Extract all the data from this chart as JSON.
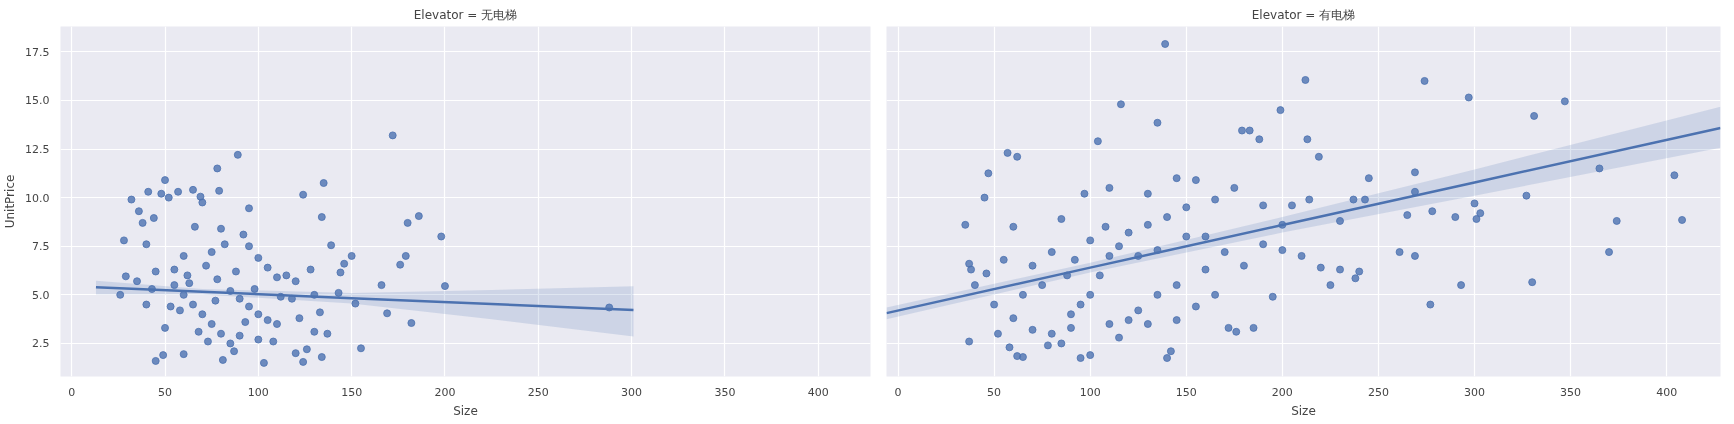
{
  "chart_data": [
    {
      "type": "scatter",
      "title": "Elevator = 无电梯",
      "xlabel": "Size",
      "ylabel": "UnitPrice",
      "xlim": [
        -6,
        428
      ],
      "ylim": [
        0.8,
        18.8
      ],
      "xticks": [
        0,
        50,
        100,
        150,
        200,
        250,
        300,
        350,
        400
      ],
      "yticks": [
        {
          "value": 2.5,
          "label": "2.5"
        },
        {
          "value": 5,
          "label": "5.0"
        },
        {
          "value": 7.5,
          "label": "7.5"
        },
        {
          "value": 10,
          "label": "10.0"
        },
        {
          "value": 12.5,
          "label": "12.5"
        },
        {
          "value": 15,
          "label": "15.0"
        },
        {
          "value": 17.5,
          "label": "17.5"
        }
      ],
      "grid": true,
      "series": [
        {
          "marker": "circle",
          "color": "#4c72b0",
          "x": [
            172,
            89,
            78,
            50,
            135,
            124,
            32,
            41,
            57,
            65,
            79,
            95,
            186,
            180,
            198,
            179,
            176,
            166,
            200,
            152,
            169,
            182,
            155,
            288,
            26,
            28,
            29,
            139,
            150,
            146,
            144,
            134,
            45,
            103,
            124,
            134,
            81,
            60,
            49,
            100,
            120,
            120,
            110,
            130,
            137,
            143,
            128,
            133,
            36,
            38,
            44,
            52,
            48,
            70,
            69,
            66,
            80,
            92,
            60,
            40,
            45,
            55,
            60,
            65,
            70,
            75,
            80,
            85,
            90,
            50,
            55,
            62,
            72,
            78,
            85,
            90,
            95,
            100,
            105,
            110,
            115,
            88,
            75,
            82,
            95,
            105,
            112,
            118,
            122,
            40,
            35,
            43,
            58,
            68,
            73,
            87,
            93,
            98,
            108,
            126,
            130,
            100,
            63,
            77,
            53
          ],
          "values": [
            13.2,
            12.2,
            11.5,
            10.9,
            10.75,
            10.15,
            9.9,
            10.3,
            10.3,
            10.4,
            10.35,
            9.45,
            9.05,
            8.7,
            8.0,
            7.0,
            6.55,
            5.5,
            5.45,
            4.55,
            4.05,
            3.55,
            2.25,
            4.35,
            5.0,
            7.8,
            5.95,
            7.55,
            7.0,
            6.6,
            6.15,
            9.0,
            1.6,
            1.5,
            1.55,
            1.8,
            1.65,
            1.95,
            1.9,
            6.9,
            5.7,
            2.0,
            3.5,
            3.1,
            3.0,
            5.1,
            6.3,
            4.1,
            9.3,
            8.7,
            8.95,
            10.0,
            10.2,
            9.75,
            10.05,
            8.5,
            8.4,
            8.1,
            7.0,
            7.6,
            6.2,
            5.5,
            5.0,
            4.5,
            4.0,
            3.5,
            3.0,
            2.5,
            2.9,
            3.3,
            6.3,
            6.0,
            6.5,
            5.8,
            5.2,
            4.8,
            4.4,
            4.0,
            3.7,
            5.9,
            6.0,
            6.2,
            7.2,
            7.6,
            7.5,
            6.4,
            4.9,
            4.8,
            3.8,
            4.5,
            5.7,
            5.3,
            4.2,
            3.1,
            2.6,
            2.1,
            3.6,
            5.3,
            2.6,
            2.2,
            5.0,
            2.7,
            5.6,
            4.7,
            4.4
          ]
        },
        {
          "type": "line",
          "marker": "none",
          "color": "#4c72b0",
          "x": [
            13,
            70,
            150,
            225,
            301
          ],
          "values": [
            5.39,
            5.16,
            4.83,
            4.53,
            4.22
          ],
          "lower": [
            5.02,
            5.02,
            4.55,
            3.75,
            2.86
          ],
          "upper": [
            5.72,
            5.3,
            5.1,
            5.25,
            5.44
          ]
        }
      ]
    },
    {
      "type": "scatter",
      "title": "Elevator = 有电梯",
      "xlabel": "Size",
      "xlim": [
        -6,
        428
      ],
      "ylim": [
        0.8,
        18.8
      ],
      "xticks": [
        0,
        50,
        100,
        150,
        200,
        250,
        300,
        350,
        400
      ],
      "yticks": [
        {
          "value": 2.5,
          "label": null
        },
        {
          "value": 5,
          "label": null
        },
        {
          "value": 7.5,
          "label": null
        },
        {
          "value": 10,
          "label": null
        },
        {
          "value": 12.5,
          "label": null
        },
        {
          "value": 15,
          "label": null
        },
        {
          "value": 17.5,
          "label": null
        }
      ],
      "tick_labels": "x",
      "grid": true,
      "series": [
        {
          "marker": "circle",
          "color": "#4c72b0",
          "x": [
            139,
            212,
            274,
            297,
            347,
            331,
            116,
            135,
            199,
            104,
            57,
            62,
            179,
            183,
            188,
            213,
            219,
            365,
            404,
            374,
            408,
            370,
            330,
            293,
            277,
            269,
            261,
            269,
            269,
            245,
            327,
            300,
            303,
            301,
            290,
            278,
            265,
            37,
            35,
            37,
            38,
            47,
            45,
            46,
            65,
            62,
            100,
            95,
            140,
            142,
            40,
            50,
            60,
            70,
            80,
            85,
            90,
            90,
            95,
            100,
            105,
            110,
            115,
            120,
            130,
            140,
            150,
            160,
            170,
            180,
            190,
            200,
            210,
            220,
            230,
            238,
            240,
            225,
            195,
            185,
            176,
            172,
            155,
            145,
            135,
            125,
            120,
            110,
            75,
            70,
            80,
            60,
            85,
            97,
            110,
            130,
            145,
            155,
            165,
            175,
            205,
            214,
            237,
            243,
            55,
            65,
            88,
            92,
            100,
            108,
            125,
            135,
            150,
            160,
            52,
            58,
            78,
            115,
            130,
            145,
            165,
            190,
            200,
            230
          ],
          "values": [
            17.9,
            16.05,
            16.0,
            15.15,
            14.95,
            14.2,
            14.8,
            13.85,
            14.5,
            12.9,
            12.3,
            12.1,
            13.45,
            13.45,
            13.0,
            13.0,
            12.1,
            11.5,
            11.15,
            8.8,
            8.85,
            7.2,
            5.65,
            5.5,
            4.5,
            7.0,
            7.2,
            11.3,
            10.3,
            11.0,
            10.1,
            9.7,
            9.2,
            8.9,
            9.0,
            9.3,
            9.1,
            2.6,
            8.6,
            6.6,
            6.3,
            11.25,
            10.0,
            6.1,
            1.8,
            1.85,
            1.9,
            1.75,
            1.75,
            2.1,
            5.5,
            4.5,
            3.8,
            3.2,
            3.0,
            2.5,
            3.3,
            4.0,
            4.5,
            5.0,
            6.0,
            7.0,
            7.5,
            8.2,
            8.6,
            9.0,
            9.5,
            8.0,
            7.2,
            6.5,
            9.6,
            8.6,
            7.0,
            6.4,
            6.3,
            5.85,
            6.2,
            5.5,
            4.9,
            3.3,
            3.1,
            3.3,
            4.4,
            5.5,
            5.0,
            4.2,
            3.7,
            3.5,
            5.5,
            6.5,
            7.2,
            8.5,
            8.9,
            10.2,
            10.5,
            10.2,
            11.0,
            10.9,
            9.9,
            10.5,
            9.6,
            9.9,
            9.9,
            9.9,
            6.8,
            5.0,
            6.0,
            6.8,
            7.8,
            8.5,
            7.0,
            7.3,
            8.0,
            6.3,
            3.0,
            2.3,
            2.4,
            2.8,
            3.5,
            3.7,
            5.0,
            7.6,
            7.3,
            8.8
          ]
        },
        {
          "type": "line",
          "marker": "none",
          "color": "#4c72b0",
          "x": [
            -6,
            100,
            200,
            300,
            428
          ],
          "values": [
            4.06,
            6.4,
            8.59,
            10.78,
            13.58
          ],
          "lower": [
            3.75,
            6.15,
            8.2,
            10.1,
            12.56
          ],
          "upper": [
            4.35,
            6.65,
            9.0,
            11.45,
            14.67
          ]
        }
      ]
    }
  ]
}
